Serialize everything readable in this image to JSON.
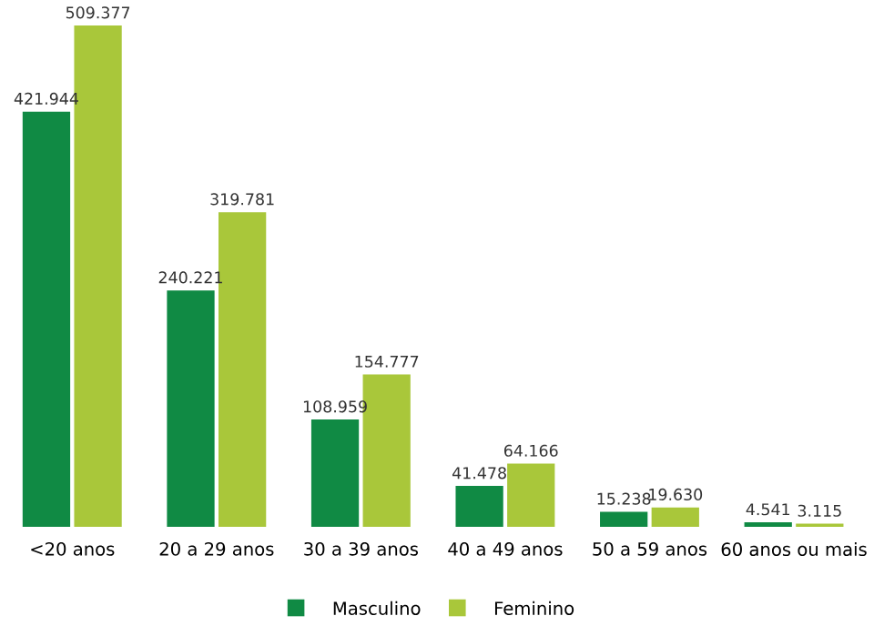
{
  "chart_data": {
    "type": "bar",
    "categories": [
      "<20 anos",
      "20 a 29 anos",
      "30 a 39 anos",
      "40 a 49 anos",
      "50 a 59 anos",
      "60 anos ou mais"
    ],
    "series": [
      {
        "name": "Masculino",
        "color": "#108a44",
        "values": [
          421944,
          240221,
          108959,
          41478,
          15238,
          4541
        ],
        "value_labels": [
          "421.944",
          "240.221",
          "108.959",
          "41.478",
          "15.238",
          "4.541"
        ]
      },
      {
        "name": "Feminino",
        "color": "#a9c73a",
        "values": [
          509377,
          319781,
          154777,
          64166,
          19630,
          3115
        ],
        "value_labels": [
          "509.377",
          "319.781",
          "154.777",
          "64.166",
          "19.630",
          "3.115"
        ]
      }
    ],
    "legend": "bottom"
  }
}
